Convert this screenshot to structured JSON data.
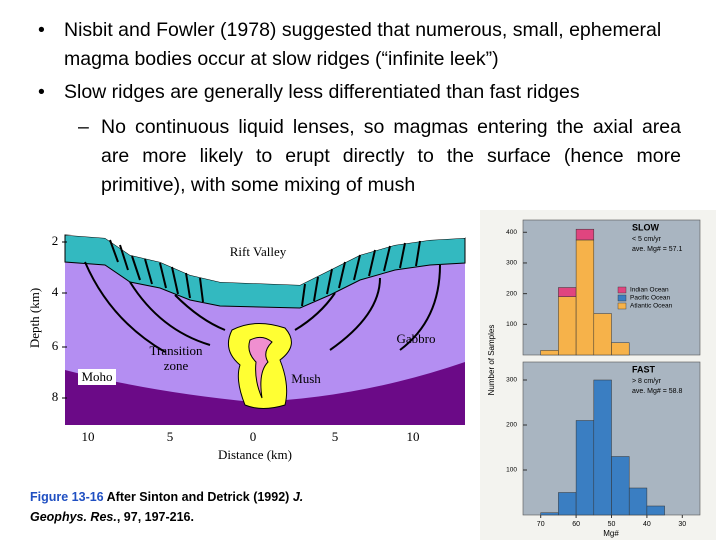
{
  "bullets": [
    {
      "text": "Nisbit and Fowler (1978) suggested that numerous, small, ephemeral magma bodies occur at slow ridges (“infinite leek”)"
    },
    {
      "text": "Slow ridges are generally less differentiated than fast ridges",
      "sub": [
        "No continuous liquid lenses, so magmas entering the axial area are more likely to erupt directly to the surface (hence more primitive), with some mixing of mush"
      ]
    }
  ],
  "diagram": {
    "y_label": "Depth (km)",
    "x_label": "Distance (km)",
    "yticks": [
      "2",
      "4",
      "6",
      "8"
    ],
    "xticks": [
      "10",
      "5",
      "0",
      "5",
      "10"
    ],
    "labels": {
      "rift_valley": "Rift Valley",
      "gabbro": "Gabbro",
      "transition_zone": "Transition zone",
      "moho": "Moho",
      "mush": "Mush"
    }
  },
  "caption": {
    "figure": "Figure 13-16",
    "text": " After Sinton and Detrick (1992) ",
    "journal": "J. Geophys. Res.",
    "ref": ", 97, 197-216."
  },
  "chart_data": [
    {
      "type": "histogram",
      "title": "SLOW",
      "annotations": [
        "< 5 cm/yr",
        "ave. Mg# = 57.1"
      ],
      "y_label": "Number of Samples",
      "legend": "top-right",
      "bins": [
        70,
        65,
        60,
        55,
        50,
        45
      ],
      "xlim": [
        75,
        25
      ],
      "ylim": [
        0,
        440
      ],
      "yticks": [
        100,
        200,
        300,
        400
      ],
      "series": [
        {
          "name": "Indian Ocean",
          "color": "#e0457f",
          "values": [
            0,
            30,
            35,
            0,
            0
          ]
        },
        {
          "name": "Pacific Ocean",
          "color": "#3a7ec2",
          "values": [
            0,
            0,
            0,
            0,
            0
          ]
        },
        {
          "name": "Atlantic Ocean",
          "color": "#f6b24a",
          "values": [
            15,
            190,
            375,
            135,
            40
          ]
        }
      ]
    },
    {
      "type": "histogram",
      "title": "FAST",
      "annotations": [
        "> 8 cm/yr",
        "ave. Mg# = 58.8"
      ],
      "x_label": "Mg#",
      "bins": [
        70,
        65,
        60,
        55,
        50,
        45,
        40,
        35
      ],
      "xlim": [
        75,
        25
      ],
      "ylim": [
        0,
        340
      ],
      "yticks": [
        100,
        200,
        300
      ],
      "xticks": [
        70,
        60,
        50,
        40,
        30
      ],
      "series": [
        {
          "name": "Pacific Ocean",
          "color": "#3a7ec2",
          "values": [
            5,
            50,
            210,
            300,
            130,
            60,
            20
          ]
        }
      ]
    }
  ]
}
